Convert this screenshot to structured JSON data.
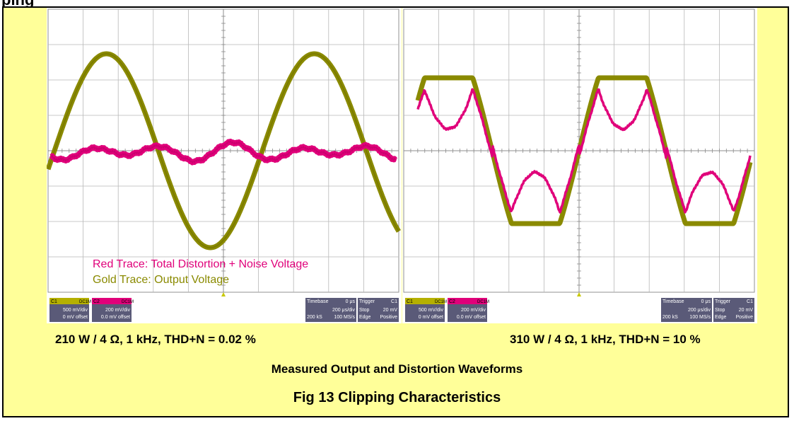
{
  "page": {
    "heading_fragment": "ping",
    "captions": {
      "left": "210 W / 4 Ω, 1 kHz, THD+N = 0.02 %",
      "right": "310 W / 4 Ω, 1 kHz, THD+N = 10 %",
      "subtitle": "Measured Output and Distortion Waveforms",
      "figure": "Fig 13 Clipping Characteristics"
    },
    "legend": {
      "red": "Red Trace: Total Distortion + Noise Voltage",
      "gold": "Gold Trace: Output Voltage"
    },
    "colors": {
      "panel_background": "#ffff99",
      "distortion_trace": "#e0007a",
      "output_trace": "#8a8a00",
      "grid": "#b8b8b8"
    }
  },
  "scopes": [
    {
      "id": "left",
      "channels": [
        {
          "name": "C1",
          "badge": "DC1M",
          "scale": "500 mV/div",
          "offset": "0 mV offset"
        },
        {
          "name": "C2",
          "badge": "DC1M",
          "scale": "200 mV/div",
          "offset": "0.0 mV offset"
        }
      ],
      "timebase": {
        "label": "Timebase",
        "value": "0 μs",
        "scale": "200 μs/div",
        "samples": "200 kS",
        "rate": "100 MS/s"
      },
      "trigger": {
        "label": "Trigger",
        "badge": "C1",
        "mode": "Stop",
        "level": "20 mV",
        "type": "Edge",
        "slope": "Positive"
      }
    },
    {
      "id": "right",
      "channels": [
        {
          "name": "C1",
          "badge": "DC1M",
          "scale": "500 mV/div",
          "offset": "0 mV offset"
        },
        {
          "name": "C2",
          "badge": "DC1M",
          "scale": "200 mV/div",
          "offset": "0.0 mV offset"
        }
      ],
      "timebase": {
        "label": "Timebase",
        "value": "0 μs",
        "scale": "200 μs/div",
        "samples": "200 kS",
        "rate": "100 MS/s"
      },
      "trigger": {
        "label": "Trigger",
        "badge": "C1",
        "mode": "Stop",
        "level": "20 mV",
        "type": "Edge",
        "slope": "Positive"
      }
    }
  ]
}
